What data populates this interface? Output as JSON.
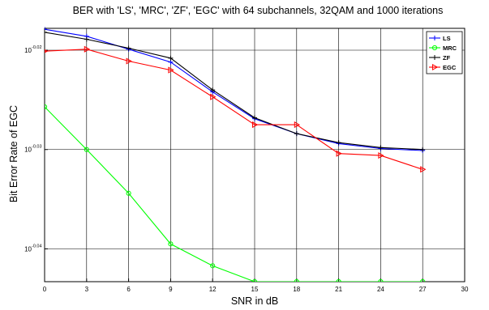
{
  "chart_data": {
    "type": "line",
    "title": "BER with 'LS', 'MRC', 'ZF', 'EGC' with 64 subchannels, 32QAM and 1000 iterations",
    "xlabel": "SNR in dB",
    "ylabel": "Bit Error Rate of EGC",
    "x": [
      0,
      3,
      6,
      9,
      12,
      15,
      18,
      21,
      24,
      27
    ],
    "xlim": [
      0,
      30
    ],
    "xticks": [
      "0",
      "3",
      "6",
      "9",
      "12",
      "15",
      "18",
      "21",
      "24",
      "27",
      "30"
    ],
    "yscale": "log",
    "ylim_log10": [
      -0.0433,
      -0.0178
    ],
    "yticks": [
      {
        "base": "10",
        "exp": "-0.02",
        "log10": -0.02
      },
      {
        "base": "10",
        "exp": "-0.03",
        "log10": -0.03
      },
      {
        "base": "10",
        "exp": "-0.04",
        "log10": -0.04
      }
    ],
    "grid": true,
    "legend_position": "top-right",
    "series": [
      {
        "name": "LS",
        "color": "#0000ff",
        "marker": "plus",
        "log10_values": [
          -0.0179,
          -0.0186,
          -0.0199,
          -0.0212,
          -0.0242,
          -0.0269,
          -0.0284,
          -0.0294,
          -0.0299,
          -0.0301
        ]
      },
      {
        "name": "MRC",
        "color": "#00ff00",
        "marker": "circle",
        "log10_values": [
          -0.0257,
          -0.03,
          -0.0344,
          -0.0395,
          -0.0417,
          -0.0443,
          -0.0456,
          -0.0459,
          -0.0464,
          -0.047
        ]
      },
      {
        "name": "ZF",
        "color": "#000000",
        "marker": "plus",
        "log10_values": [
          -0.0182,
          -0.0189,
          -0.0198,
          -0.0208,
          -0.024,
          -0.0268,
          -0.0284,
          -0.0293,
          -0.0298,
          -0.03
        ]
      },
      {
        "name": "EGC",
        "color": "#ff0000",
        "marker": "triangle-right",
        "log10_values": [
          -0.0201,
          -0.0199,
          -0.0211,
          -0.022,
          -0.0247,
          -0.0275,
          -0.0275,
          -0.0304,
          -0.0306,
          -0.032
        ]
      }
    ]
  }
}
